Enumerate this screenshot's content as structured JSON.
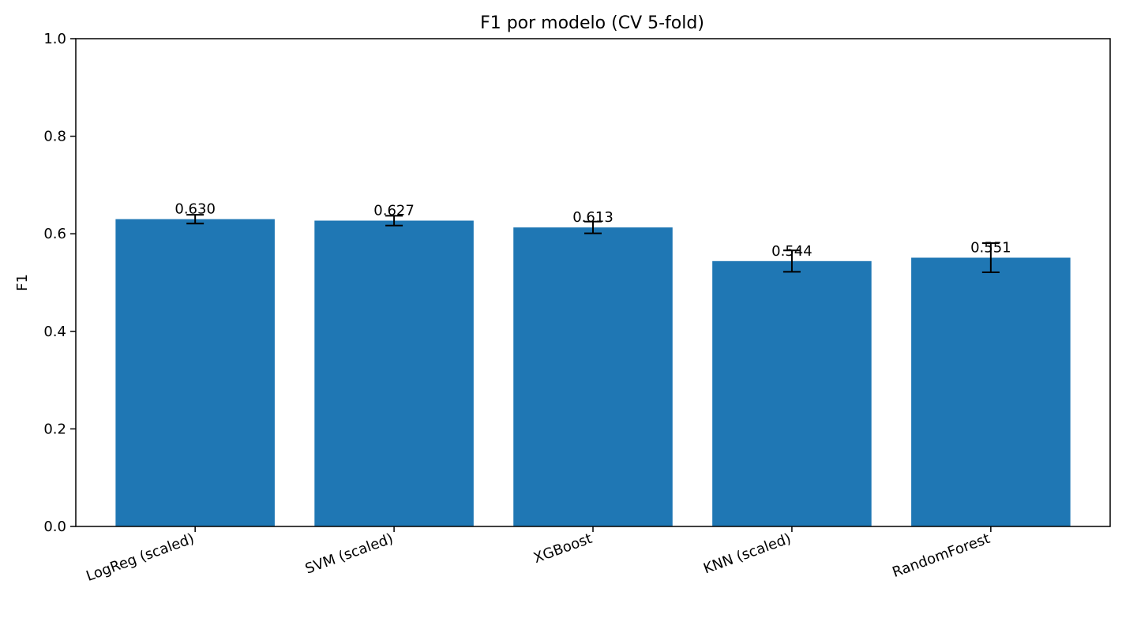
{
  "chart_data": {
    "type": "bar",
    "title": "F1 por modelo (CV 5-fold)",
    "xlabel": "",
    "ylabel": "F1",
    "categories": [
      "LogReg (scaled)",
      "SVM (scaled)",
      "XGBoost",
      "KNN (scaled)",
      "RandomForest"
    ],
    "values": [
      0.63,
      0.627,
      0.613,
      0.544,
      0.551
    ],
    "error": [
      0.009,
      0.01,
      0.012,
      0.022,
      0.03
    ],
    "data_labels": [
      "0.630",
      "0.627",
      "0.613",
      "0.544",
      "0.551"
    ],
    "ylim": [
      0,
      1.0
    ],
    "yticks": [
      0.0,
      0.2,
      0.4,
      0.6,
      0.8,
      1.0
    ],
    "ytick_labels": [
      "0.0",
      "0.2",
      "0.4",
      "0.6",
      "0.8",
      "1.0"
    ],
    "grid": false,
    "bar_color": "#1f77b4",
    "errorbar_color": "#000000"
  }
}
